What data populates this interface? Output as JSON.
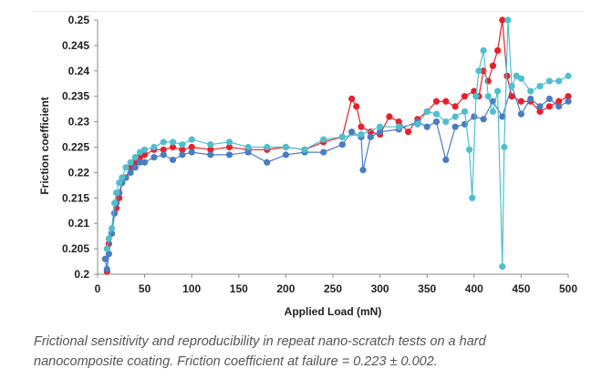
{
  "chart_data": {
    "type": "scatter",
    "title": "",
    "xlabel": "Applied Load (mN)",
    "ylabel": "Friction coefficient",
    "xlim": [
      0,
      500
    ],
    "ylim": [
      0.2,
      0.25
    ],
    "x_ticks": [
      "0",
      "50",
      "100",
      "150",
      "200",
      "250",
      "300",
      "350",
      "400",
      "450",
      "500"
    ],
    "y_ticks": [
      "0.2",
      "0.205",
      "0.21",
      "0.215",
      "0.22",
      "0.225",
      "0.23",
      "0.235",
      "0.24",
      "0.245",
      "0.25"
    ],
    "grid": false,
    "legend": "none",
    "series": [
      {
        "color": "#e8202a",
        "x": [
          10,
          12,
          15,
          18,
          20,
          23,
          26,
          30,
          35,
          40,
          45,
          50,
          60,
          70,
          80,
          90,
          100,
          120,
          140,
          160,
          180,
          200,
          220,
          240,
          260,
          270,
          275,
          280,
          290,
          300,
          310,
          320,
          330,
          340,
          350,
          360,
          370,
          380,
          390,
          400,
          405,
          410,
          415,
          420,
          425,
          430,
          435,
          440,
          450,
          460,
          470,
          480,
          490,
          500
        ],
        "y": [
          0.2005,
          0.206,
          0.208,
          0.212,
          0.213,
          0.215,
          0.218,
          0.219,
          0.221,
          0.222,
          0.223,
          0.2235,
          0.2245,
          0.2245,
          0.225,
          0.2245,
          0.225,
          0.2245,
          0.225,
          0.2245,
          0.2245,
          0.225,
          0.2245,
          0.226,
          0.227,
          0.2345,
          0.233,
          0.229,
          0.228,
          0.2275,
          0.231,
          0.23,
          0.228,
          0.2305,
          0.232,
          0.234,
          0.234,
          0.233,
          0.235,
          0.236,
          0.235,
          0.24,
          0.238,
          0.241,
          0.244,
          0.25,
          0.239,
          0.235,
          0.234,
          0.234,
          0.232,
          0.233,
          0.234,
          0.235
        ]
      },
      {
        "color": "#4a7cc0",
        "x": [
          8,
          10,
          12,
          15,
          18,
          20,
          23,
          26,
          30,
          35,
          40,
          45,
          50,
          60,
          70,
          80,
          90,
          100,
          120,
          140,
          160,
          180,
          200,
          220,
          240,
          260,
          270,
          280,
          282,
          290,
          300,
          320,
          340,
          350,
          360,
          370,
          380,
          390,
          400,
          410,
          420,
          430,
          440,
          450,
          460,
          470,
          480,
          490,
          500
        ],
        "y": [
          0.203,
          0.201,
          0.204,
          0.208,
          0.212,
          0.214,
          0.216,
          0.218,
          0.219,
          0.22,
          0.221,
          0.222,
          0.222,
          0.223,
          0.2235,
          0.2225,
          0.2235,
          0.224,
          0.2235,
          0.2235,
          0.224,
          0.222,
          0.2235,
          0.224,
          0.224,
          0.2255,
          0.228,
          0.227,
          0.2205,
          0.227,
          0.228,
          0.2285,
          0.23,
          0.229,
          0.23,
          0.2225,
          0.229,
          0.2295,
          0.231,
          0.2305,
          0.234,
          0.231,
          0.237,
          0.2315,
          0.2345,
          0.233,
          0.2345,
          0.233,
          0.234
        ]
      },
      {
        "color": "#4fbfcf",
        "x": [
          10,
          12,
          15,
          18,
          20,
          23,
          26,
          30,
          35,
          40,
          45,
          50,
          60,
          70,
          80,
          90,
          100,
          120,
          140,
          160,
          180,
          200,
          220,
          240,
          260,
          280,
          300,
          320,
          340,
          350,
          360,
          370,
          380,
          390,
          395,
          398,
          402,
          405,
          410,
          415,
          420,
          425,
          430,
          432,
          436,
          440,
          445,
          450,
          460,
          470,
          480,
          490,
          500
        ],
        "y": [
          0.205,
          0.207,
          0.209,
          0.214,
          0.216,
          0.218,
          0.219,
          0.221,
          0.222,
          0.223,
          0.224,
          0.2245,
          0.225,
          0.226,
          0.226,
          0.2255,
          0.2265,
          0.2255,
          0.226,
          0.225,
          0.225,
          0.225,
          0.2245,
          0.2265,
          0.227,
          0.2275,
          0.229,
          0.229,
          0.2295,
          0.232,
          0.2315,
          0.23,
          0.231,
          0.232,
          0.2245,
          0.215,
          0.235,
          0.24,
          0.244,
          0.235,
          0.232,
          0.236,
          0.2015,
          0.225,
          0.25,
          0.237,
          0.239,
          0.2385,
          0.236,
          0.237,
          0.238,
          0.238,
          0.239
        ]
      }
    ]
  },
  "caption": {
    "line1": "Frictional sensitivity and reproducibility in repeat nano-scratch tests on a hard",
    "line2": "nanocomposite coating. Friction coefficient at failure = 0.223 ± 0.002."
  }
}
